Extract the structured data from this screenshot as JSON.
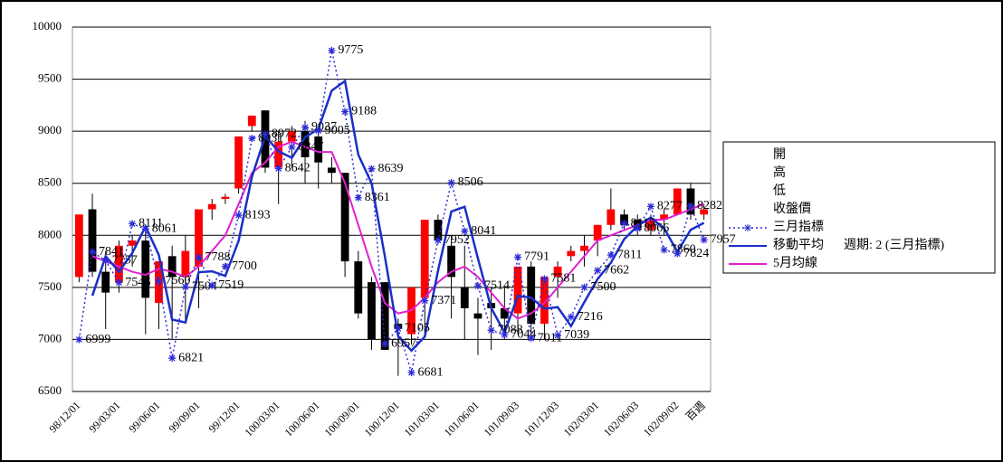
{
  "chart_data": {
    "type": "candlestick",
    "categories": [
      "98/12/01",
      null,
      null,
      "99/03/01",
      null,
      null,
      "99/06/01",
      null,
      null,
      "99/09/01",
      null,
      null,
      "99/12/01",
      null,
      null,
      "100/03/01",
      null,
      null,
      "100/06/01",
      null,
      null,
      "100/09/01",
      null,
      null,
      "100/12/01",
      null,
      null,
      "101/03/01",
      null,
      null,
      "101/06/01",
      null,
      null,
      "101/09/03",
      null,
      null,
      "101/12/03",
      null,
      null,
      "102/03/01",
      null,
      null,
      "102/06/03",
      null,
      null,
      "102/09/02",
      null,
      "百週"
    ],
    "series": [
      {
        "name": "開",
        "values": [
          7600,
          8250,
          7650,
          7550,
          7900,
          7950,
          7350,
          7800,
          7600,
          7700,
          8250,
          8350,
          8450,
          9050,
          9200,
          8650,
          8900,
          9000,
          8950,
          8650,
          8600,
          7750,
          7550,
          7550,
          7150,
          7050,
          7400,
          8150,
          7900,
          7500,
          7250,
          7350,
          7300,
          7250,
          7700,
          7150,
          7600,
          7800,
          7850,
          7950,
          8100,
          8200,
          8150,
          8050,
          8150,
          8200,
          8450,
          8200
        ]
      },
      {
        "name": "高",
        "values": [
          8200,
          8400,
          7850,
          7950,
          8000,
          8050,
          7750,
          7900,
          8000,
          8250,
          8350,
          8400,
          8950,
          9150,
          9200,
          9000,
          9050,
          9100,
          9000,
          8750,
          8600,
          7850,
          7600,
          7550,
          7200,
          7500,
          8150,
          8200,
          8000,
          7900,
          7400,
          7500,
          7500,
          7700,
          7750,
          7600,
          7750,
          7900,
          8000,
          8100,
          8450,
          8250,
          8200,
          8200,
          8250,
          8450,
          8500,
          8300
        ]
      },
      {
        "name": "低",
        "values": [
          7550,
          7600,
          7100,
          7450,
          7700,
          7050,
          7100,
          7000,
          7150,
          7300,
          8150,
          8300,
          8400,
          9000,
          8600,
          8300,
          8650,
          8500,
          8450,
          8500,
          7600,
          7200,
          6900,
          6900,
          6650,
          6950,
          7050,
          7950,
          7200,
          7000,
          6850,
          6900,
          7000,
          7050,
          7050,
          7000,
          7400,
          7750,
          7700,
          7800,
          8050,
          8050,
          8000,
          8000,
          8000,
          8200,
          8150,
          8150
        ]
      },
      {
        "name": "收盤價",
        "values": [
          8200,
          7650,
          7450,
          7900,
          7950,
          7400,
          7750,
          7600,
          7850,
          8250,
          8300,
          8370,
          8950,
          9150,
          8650,
          8900,
          9000,
          8750,
          8700,
          8600,
          7750,
          7250,
          7000,
          6900,
          7100,
          7500,
          8150,
          7950,
          7600,
          7300,
          7200,
          7300,
          7200,
          7700,
          7150,
          7600,
          7700,
          7850,
          7900,
          8100,
          8250,
          8100,
          8050,
          8150,
          8200,
          8450,
          8200,
          8250
        ]
      },
      {
        "name": "三月指標",
        "color": "#2b2bd6",
        "values": [
          6999,
          7841,
          7757,
          7546,
          8111,
          8061,
          7560,
          6821,
          7504,
          7788,
          7519,
          7700,
          8193,
          8931,
          8972,
          8642,
          8847,
          9037,
          9005,
          9775,
          9188,
          8361,
          8639,
          6957,
          7105,
          6681,
          7371,
          7952,
          8506,
          8041,
          7514,
          7088,
          7044,
          7791,
          7011,
          7581,
          7039,
          7216,
          7500,
          7662,
          7811,
          8115,
          8066,
          8277,
          7860,
          7824,
          8282,
          7957
        ]
      },
      {
        "name": "移動平均",
        "color": "#1a2fc8",
        "values": [
          null,
          7420,
          7799,
          7652,
          7829,
          8086,
          7811,
          7191,
          7163,
          7646,
          7654,
          7610,
          7947,
          8562,
          8952,
          8807,
          8745,
          8942,
          9021,
          9390,
          9482,
          8775,
          8500,
          7798,
          7031,
          6893,
          7026,
          7662,
          8229,
          8274,
          7778,
          7301,
          7066,
          7418,
          7401,
          7296,
          7310,
          7128,
          7358,
          7581,
          7737,
          7963,
          8091,
          8172,
          8069,
          7842,
          8053,
          8120
        ]
      },
      {
        "name": "5月均線",
        "color": "#e020d0",
        "values": [
          null,
          7800,
          7750,
          7700,
          7650,
          7620,
          7680,
          7650,
          7600,
          7700,
          7850,
          8000,
          8300,
          8600,
          8700,
          8850,
          8900,
          8850,
          8800,
          8800,
          8500,
          8100,
          7700,
          7350,
          7250,
          7280,
          7400,
          7550,
          7650,
          7700,
          7600,
          7450,
          7300,
          7200,
          7250,
          7350,
          7500,
          7650,
          7800,
          7950,
          8000,
          8050,
          8100,
          8150,
          8150,
          8200,
          8250,
          8300
        ]
      }
    ],
    "legend_note": "週期: 2 (三月指標)",
    "up_color": "#ff0000",
    "down_color": "#000000",
    "ylim": [
      6500,
      10000
    ],
    "yticks": [
      6500,
      7000,
      7500,
      8000,
      8500,
      9000,
      9500,
      10000
    ],
    "grid": true
  }
}
